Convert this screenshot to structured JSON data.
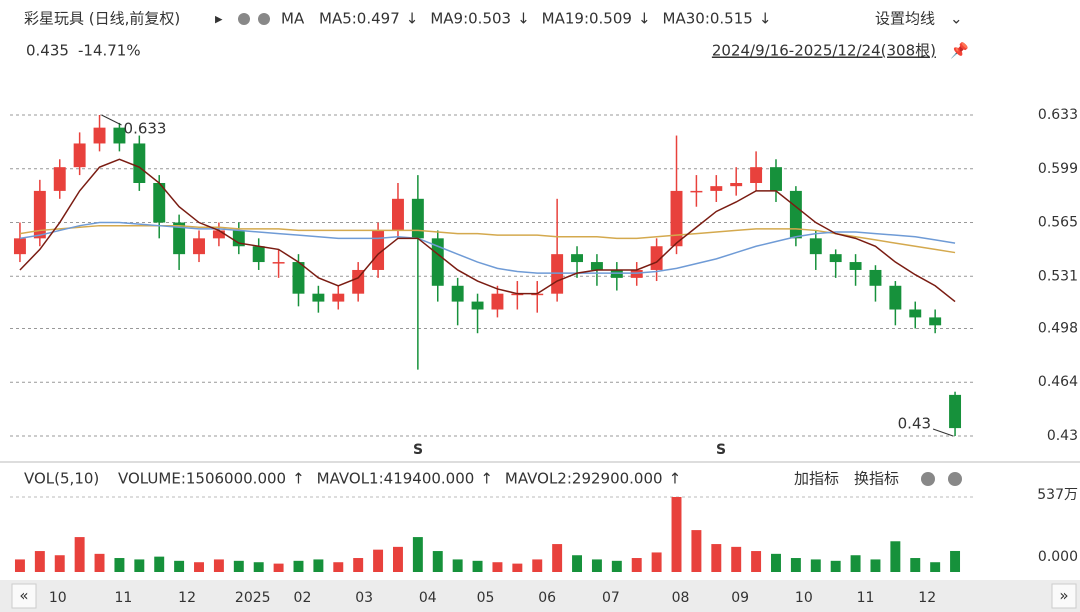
{
  "chart_data": {
    "type": "candlestick",
    "title": "彩星玩具 (日线,前复权)",
    "ma_label": "MA",
    "ma_legend": [
      {
        "label": "MA5:0.497",
        "arrow": "↓",
        "color": "#333333"
      },
      {
        "label": "MA9:0.503",
        "arrow": "↓",
        "color": "#e040c0"
      },
      {
        "label": "MA19:0.509",
        "arrow": "↓",
        "color": "#a0a0a0"
      },
      {
        "label": "MA30:0.515",
        "arrow": "↓",
        "color": "#8b1a1a"
      }
    ],
    "settings_label": "设置均线",
    "last_price": 0.435,
    "change": {
      "value": -14.71,
      "label": "-14.71%"
    },
    "range_label": "2024/9/16-2025/12/24(308根)",
    "up_color": "#e8413c",
    "down_color": "#16913b",
    "ylim": [
      0.43,
      0.633
    ],
    "yticks": [
      0.633,
      0.599,
      0.565,
      0.531,
      0.498,
      0.464,
      0.43
    ],
    "grid": true,
    "xticks": [
      {
        "value": 1.9,
        "label": "10"
      },
      {
        "value": 5.2,
        "label": "11"
      },
      {
        "value": 8.4,
        "label": "12"
      },
      {
        "value": 11.7,
        "label": "2025"
      },
      {
        "value": 14.2,
        "label": "02"
      },
      {
        "value": 17.3,
        "label": "03"
      },
      {
        "value": 20.5,
        "label": "04"
      },
      {
        "value": 23.4,
        "label": "05"
      },
      {
        "value": 26.5,
        "label": "06"
      },
      {
        "value": 29.7,
        "label": "07"
      },
      {
        "value": 33.2,
        "label": "08"
      },
      {
        "value": 36.2,
        "label": "09"
      },
      {
        "value": 39.4,
        "label": "10"
      },
      {
        "value": 42.5,
        "label": "11"
      },
      {
        "value": 45.6,
        "label": "12"
      }
    ],
    "candles": {
      "open": [
        0.545,
        0.555,
        0.585,
        0.6,
        0.615,
        0.625,
        0.615,
        0.59,
        0.565,
        0.545,
        0.555,
        0.56,
        0.55,
        0.54,
        0.54,
        0.52,
        0.515,
        0.52,
        0.535,
        0.56,
        0.58,
        0.555,
        0.525,
        0.515,
        0.51,
        0.52,
        0.52,
        0.52,
        0.545,
        0.54,
        0.535,
        0.53,
        0.535,
        0.55,
        0.585,
        0.585,
        0.588,
        0.59,
        0.6,
        0.585,
        0.555,
        0.545,
        0.54,
        0.535,
        0.525,
        0.51,
        0.505,
        0.456
      ],
      "high": [
        0.565,
        0.592,
        0.605,
        0.622,
        0.633,
        0.628,
        0.62,
        0.595,
        0.57,
        0.56,
        0.565,
        0.565,
        0.555,
        0.548,
        0.545,
        0.525,
        0.525,
        0.54,
        0.565,
        0.59,
        0.595,
        0.56,
        0.53,
        0.52,
        0.525,
        0.528,
        0.528,
        0.58,
        0.55,
        0.545,
        0.54,
        0.54,
        0.555,
        0.62,
        0.595,
        0.595,
        0.6,
        0.61,
        0.605,
        0.588,
        0.56,
        0.548,
        0.545,
        0.538,
        0.528,
        0.515,
        0.51,
        0.458
      ],
      "low": [
        0.54,
        0.55,
        0.58,
        0.595,
        0.61,
        0.61,
        0.585,
        0.555,
        0.535,
        0.54,
        0.55,
        0.545,
        0.535,
        0.53,
        0.512,
        0.508,
        0.51,
        0.515,
        0.53,
        0.555,
        0.472,
        0.515,
        0.5,
        0.495,
        0.505,
        0.51,
        0.508,
        0.515,
        0.53,
        0.525,
        0.522,
        0.525,
        0.528,
        0.545,
        0.575,
        0.578,
        0.582,
        0.585,
        0.578,
        0.55,
        0.535,
        0.53,
        0.525,
        0.515,
        0.5,
        0.498,
        0.495,
        0.43
      ],
      "close": [
        0.555,
        0.585,
        0.6,
        0.615,
        0.625,
        0.615,
        0.59,
        0.565,
        0.545,
        0.555,
        0.56,
        0.55,
        0.54,
        0.54,
        0.52,
        0.515,
        0.52,
        0.535,
        0.56,
        0.58,
        0.555,
        0.525,
        0.515,
        0.51,
        0.52,
        0.52,
        0.52,
        0.545,
        0.54,
        0.535,
        0.53,
        0.535,
        0.55,
        0.585,
        0.585,
        0.588,
        0.59,
        0.6,
        0.585,
        0.555,
        0.545,
        0.54,
        0.535,
        0.525,
        0.51,
        0.505,
        0.5,
        0.435
      ]
    },
    "series": [
      {
        "color": "#d4a94e",
        "values": [
          0.558,
          0.56,
          0.561,
          0.562,
          0.563,
          0.563,
          0.563,
          0.563,
          0.563,
          0.562,
          0.562,
          0.561,
          0.561,
          0.561,
          0.56,
          0.56,
          0.56,
          0.56,
          0.56,
          0.56,
          0.56,
          0.559,
          0.558,
          0.558,
          0.557,
          0.557,
          0.557,
          0.556,
          0.556,
          0.556,
          0.555,
          0.555,
          0.556,
          0.557,
          0.558,
          0.559,
          0.56,
          0.561,
          0.561,
          0.561,
          0.56,
          0.558,
          0.556,
          0.554,
          0.552,
          0.55,
          0.548,
          0.546
        ]
      },
      {
        "color": "#6f9bd6",
        "values": [
          0.555,
          0.557,
          0.56,
          0.563,
          0.565,
          0.565,
          0.564,
          0.563,
          0.562,
          0.561,
          0.561,
          0.56,
          0.559,
          0.558,
          0.557,
          0.556,
          0.555,
          0.555,
          0.555,
          0.556,
          0.555,
          0.55,
          0.545,
          0.54,
          0.536,
          0.534,
          0.533,
          0.533,
          0.533,
          0.533,
          0.533,
          0.533,
          0.534,
          0.536,
          0.539,
          0.542,
          0.546,
          0.55,
          0.553,
          0.556,
          0.558,
          0.559,
          0.559,
          0.558,
          0.557,
          0.556,
          0.554,
          0.552
        ]
      },
      {
        "color": "#7a1c12",
        "values": [
          0.535,
          0.548,
          0.565,
          0.585,
          0.6,
          0.605,
          0.6,
          0.59,
          0.575,
          0.565,
          0.56,
          0.552,
          0.55,
          0.548,
          0.54,
          0.53,
          0.525,
          0.53,
          0.545,
          0.555,
          0.555,
          0.545,
          0.535,
          0.528,
          0.523,
          0.52,
          0.52,
          0.528,
          0.533,
          0.535,
          0.535,
          0.535,
          0.54,
          0.552,
          0.562,
          0.572,
          0.578,
          0.585,
          0.585,
          0.575,
          0.565,
          0.558,
          0.555,
          0.55,
          0.54,
          0.532,
          0.525,
          0.515
        ]
      }
    ],
    "annotations": [
      {
        "value": 0.633,
        "at": 4
      },
      {
        "value": 0.43,
        "at": 47
      }
    ],
    "signal_label": "S",
    "volume": {
      "title": "VOL(5,10)",
      "items": [
        {
          "label": "VOLUME:1506000.000",
          "arrow": "↑",
          "color": "#333333"
        },
        {
          "label": "MAVOL1:419400.000",
          "arrow": "↑",
          "color": "#e040c0"
        },
        {
          "label": "MAVOL2:292900.000",
          "arrow": "↑",
          "color": "#a0a0a0"
        }
      ],
      "buttons": [
        "加指标",
        "换指标"
      ],
      "ylim": [
        0,
        5370000
      ],
      "yticks": [
        {
          "value": 5370000,
          "label": "537万"
        },
        {
          "value": 0,
          "label": "0.000"
        }
      ],
      "values": [
        900000,
        1500000,
        1200000,
        2500000,
        1300000,
        1000000,
        900000,
        1100000,
        800000,
        700000,
        900000,
        800000,
        700000,
        600000,
        800000,
        900000,
        700000,
        1000000,
        1600000,
        1800000,
        2500000,
        1500000,
        900000,
        800000,
        700000,
        600000,
        900000,
        2000000,
        1200000,
        900000,
        800000,
        1000000,
        1400000,
        5370000,
        3000000,
        2000000,
        1800000,
        1500000,
        1300000,
        1000000,
        900000,
        800000,
        1200000,
        900000,
        2200000,
        1000000,
        700000,
        1506000
      ]
    }
  }
}
